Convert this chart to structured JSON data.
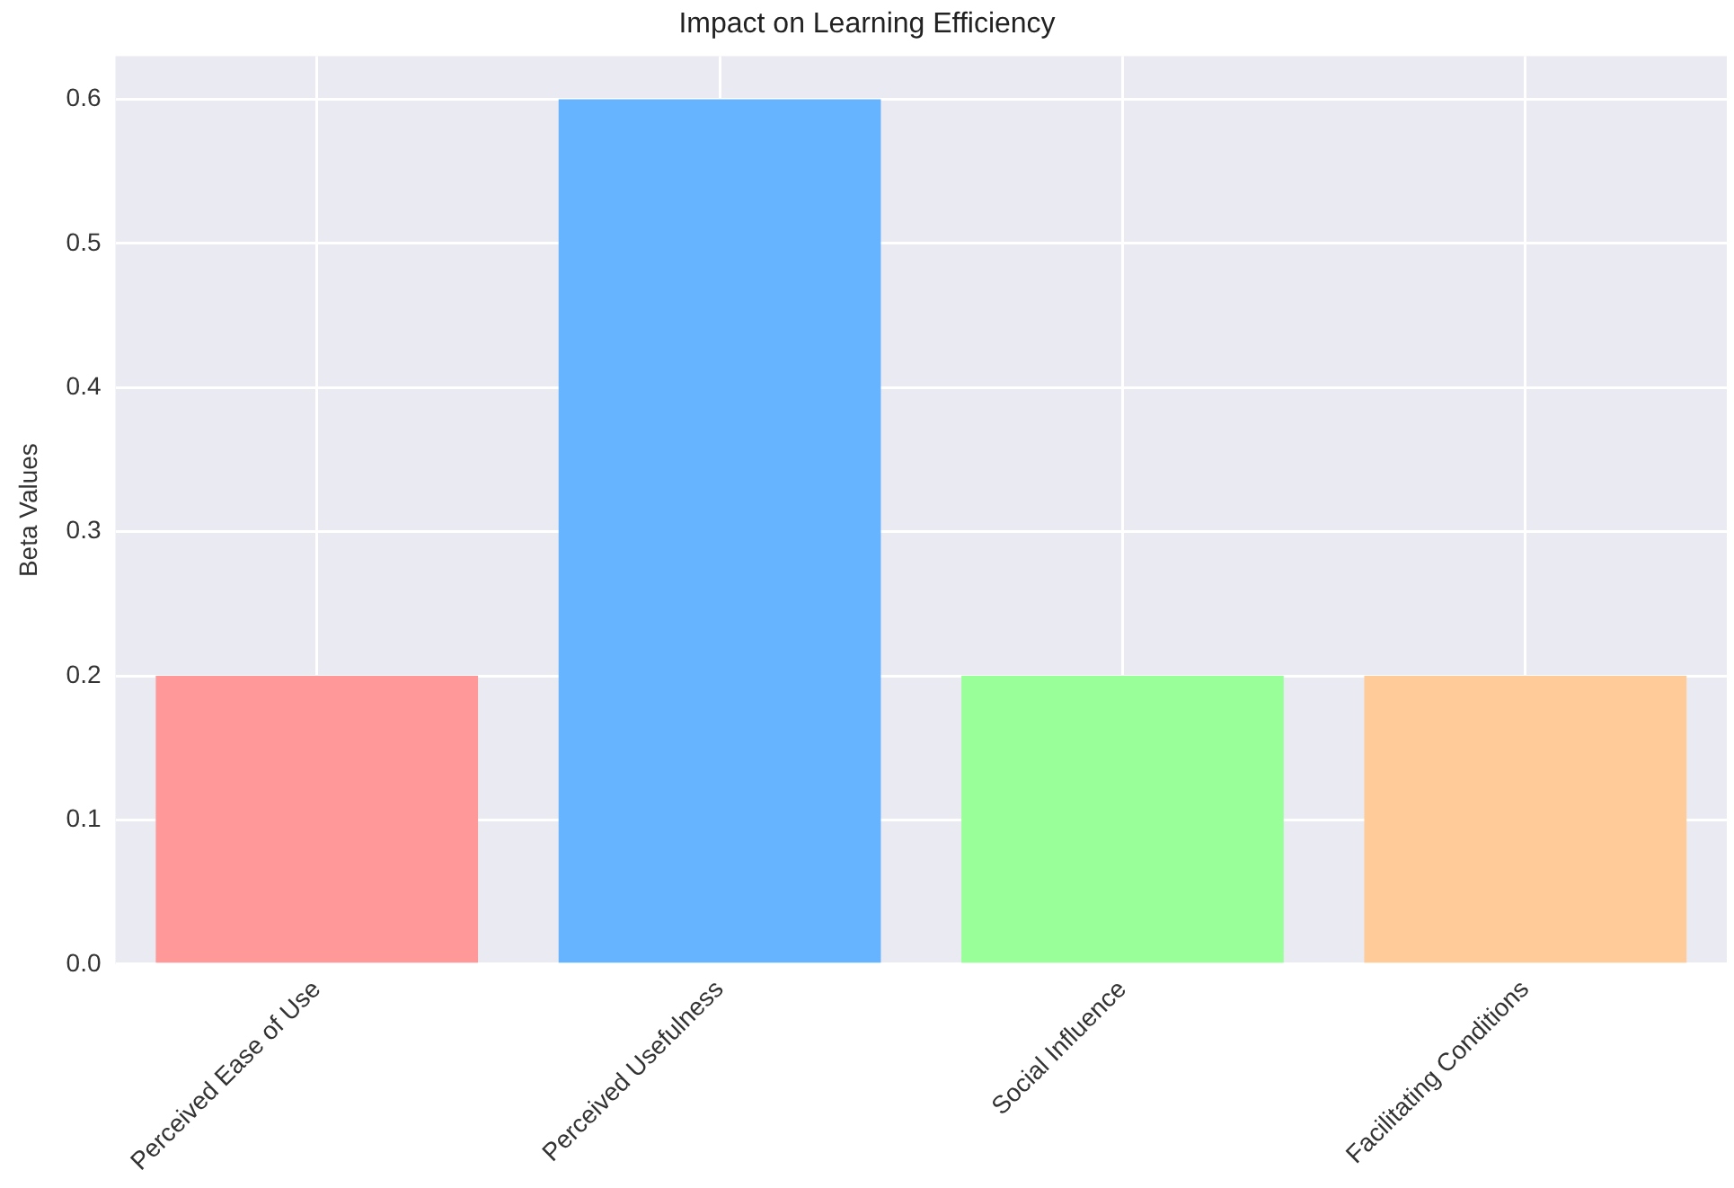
{
  "chart_data": {
    "type": "bar",
    "title": "Impact on Learning Efficiency",
    "ylabel": "Beta Values",
    "categories": [
      "Perceived Ease of Use",
      "Perceived Usefulness",
      "Social Influence",
      "Facilitating Conditions"
    ],
    "values": [
      0.2,
      0.6,
      0.2,
      0.2
    ],
    "colors": [
      "#ff9999",
      "#66b3ff",
      "#99ff99",
      "#ffcc99"
    ],
    "ylim": [
      0,
      0.63
    ],
    "yticks": [
      {
        "value": 0,
        "label": "0.0"
      },
      {
        "value": 0.1,
        "label": "0.1"
      },
      {
        "value": 0.2,
        "label": "0.2"
      },
      {
        "value": 0.3,
        "label": "0.3"
      },
      {
        "value": 0.4,
        "label": "0.4"
      },
      {
        "value": 0.5,
        "label": "0.5"
      },
      {
        "value": 0.6,
        "label": "0.6"
      }
    ],
    "grid": true,
    "legend": false
  }
}
